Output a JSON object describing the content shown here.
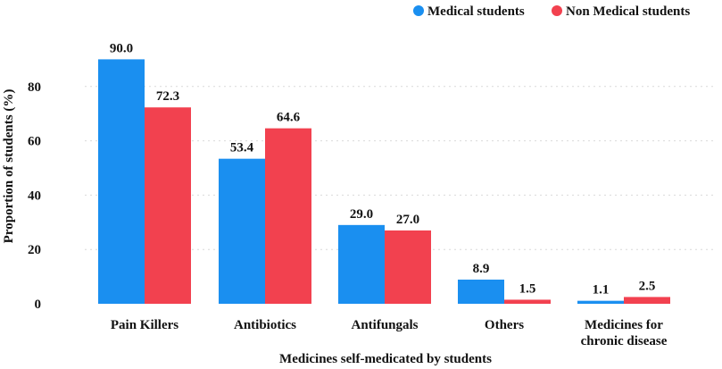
{
  "chart_data": {
    "type": "bar",
    "title": "",
    "xlabel": "Medicines self-medicated by students",
    "ylabel": "Proportion of students (%)",
    "ylim": [
      0,
      100
    ],
    "yticks": [
      0,
      20,
      40,
      60,
      80
    ],
    "grid": true,
    "legend": "top-right",
    "categories": [
      [
        "Pain Killers"
      ],
      [
        "Antibiotics"
      ],
      [
        "Antifungals"
      ],
      [
        "Others"
      ],
      [
        "Medicines for",
        "chronic disease"
      ]
    ],
    "series": [
      {
        "name": "Medical students",
        "color": "#1A8FF0",
        "values": [
          90.0,
          53.4,
          29.0,
          8.9,
          1.1
        ],
        "labels": [
          "90.0",
          "53.4",
          "29.0",
          "8.9",
          "1.1"
        ]
      },
      {
        "name": "Non Medical students",
        "color": "#F2414F",
        "values": [
          72.3,
          64.6,
          27.0,
          1.5,
          2.5
        ],
        "labels": [
          "72.3",
          "64.6",
          "27.0",
          "1.5",
          "2.5"
        ]
      }
    ]
  }
}
